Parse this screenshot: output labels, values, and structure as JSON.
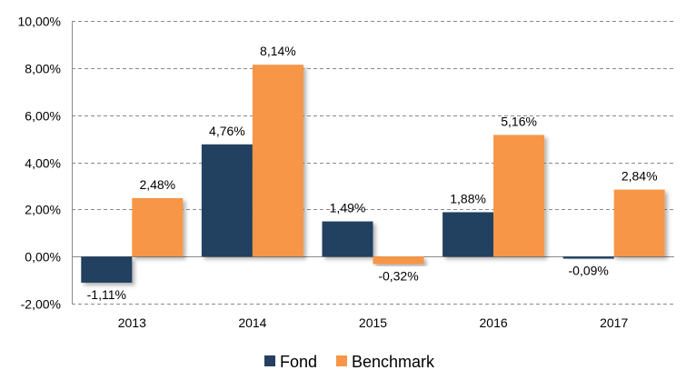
{
  "chart_data": {
    "type": "bar",
    "categories": [
      "2013",
      "2014",
      "2015",
      "2016",
      "2017"
    ],
    "series": [
      {
        "name": "Fond",
        "values": [
          -1.11,
          4.76,
          1.49,
          1.88,
          -0.09
        ],
        "labels": [
          "-1,11%",
          "4,76%",
          "1,49%",
          "1,88%",
          "-0,09%"
        ],
        "color": "#243f60"
      },
      {
        "name": "Benchmark",
        "values": [
          2.48,
          8.14,
          -0.32,
          5.16,
          2.84
        ],
        "labels": [
          "2,48%",
          "8,14%",
          "-0,32%",
          "5,16%",
          "2,84%"
        ],
        "color": "#f79646"
      }
    ],
    "ylim": [
      -2,
      10
    ],
    "yticks": [
      -2,
      0,
      2,
      4,
      6,
      8,
      10
    ],
    "ytick_labels": [
      "-2,00%",
      "0,00%",
      "2,00%",
      "4,00%",
      "6,00%",
      "8,00%",
      "10,00%"
    ],
    "grid": "horizontal-dashed",
    "legend_position": "bottom",
    "title": "",
    "xlabel": "",
    "ylabel": ""
  }
}
